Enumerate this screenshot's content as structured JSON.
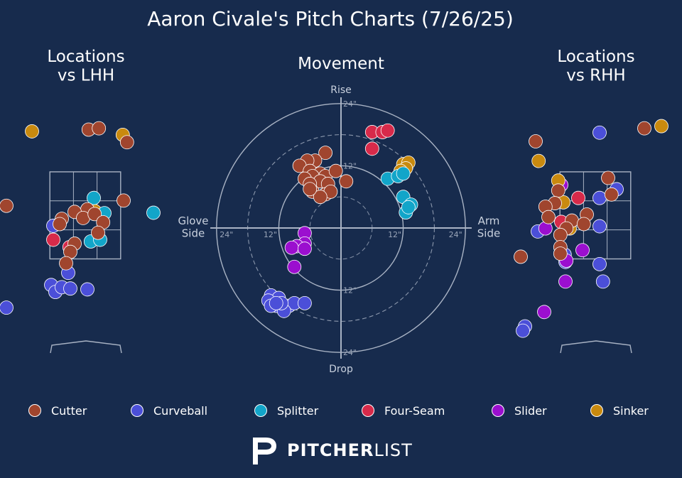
{
  "title": "Aaron Civale's Pitch Charts (7/26/25)",
  "colors": {
    "background": "#172b4d",
    "grid": "#a9b3c4",
    "point_edge": "#ffffff"
  },
  "brand": {
    "name_bold": "PITCHER",
    "name_light": "LIST",
    "icon": "pitcherlist-logo-icon"
  },
  "chart_data": [
    {
      "type": "scatter",
      "title": "Locations vs LHH",
      "subtitle": "",
      "notes": "Catcher's-view strike-zone location chart; values are plate_x / plate_z in feet",
      "xlim": [
        -2.0,
        2.0
      ],
      "ylim": [
        -1.2,
        5.0
      ],
      "zone": {
        "x": [
          -0.83,
          0.83
        ],
        "z": [
          1.5,
          3.5
        ]
      },
      "series": [
        {
          "name": "Cutter",
          "points": [
            [
              -1.85,
              2.72
            ],
            [
              0.08,
              4.47
            ],
            [
              0.32,
              4.5
            ],
            [
              0.98,
              4.18
            ],
            [
              0.9,
              2.84
            ],
            [
              0.05,
              2.64
            ],
            [
              -0.25,
              2.58
            ],
            [
              -0.05,
              2.44
            ],
            [
              0.22,
              2.53
            ],
            [
              0.42,
              2.34
            ],
            [
              0.3,
              2.1
            ],
            [
              -0.55,
              2.42
            ],
            [
              -0.6,
              2.3
            ],
            [
              -0.25,
              1.85
            ],
            [
              -0.35,
              1.66
            ],
            [
              -0.45,
              1.4
            ]
          ]
        },
        {
          "name": "Curveball",
          "points": [
            [
              -0.75,
              2.26
            ],
            [
              -0.4,
              1.18
            ],
            [
              -1.85,
              0.38
            ],
            [
              -0.8,
              0.9
            ],
            [
              -0.7,
              0.74
            ],
            [
              -0.55,
              0.85
            ],
            [
              -0.35,
              0.82
            ],
            [
              0.05,
              0.8
            ]
          ]
        },
        {
          "name": "Splitter",
          "points": [
            [
              0.2,
              2.9
            ],
            [
              0.45,
              2.55
            ],
            [
              1.6,
              2.56
            ],
            [
              0.13,
              1.9
            ],
            [
              0.35,
              1.94
            ]
          ]
        },
        {
          "name": "Four-Seam",
          "points": [
            [
              -0.75,
              1.94
            ],
            [
              -0.37,
              1.77
            ]
          ]
        },
        {
          "name": "Slider",
          "points": []
        },
        {
          "name": "Sinker",
          "points": [
            [
              -1.25,
              4.43
            ],
            [
              0.88,
              4.35
            ],
            [
              0.22,
              2.6
            ]
          ]
        }
      ]
    },
    {
      "type": "scatter",
      "title": "Movement",
      "notes": "Induced break in inches; x positive toward arm side, y positive is rise",
      "xlabel_left": "Glove\nSide",
      "xlabel_right": "Arm\nSide",
      "ylabel_top": "Rise",
      "ylabel_bottom": "Drop",
      "ring_labels": [
        "12\"",
        "24\""
      ],
      "xlim": [
        -24,
        24
      ],
      "ylim": [
        -24,
        24
      ],
      "series": [
        {
          "name": "Cutter",
          "points": [
            [
              -3,
              14.5
            ],
            [
              -5,
              13
            ],
            [
              -6.5,
              13
            ],
            [
              -8,
              12
            ],
            [
              -6,
              11
            ],
            [
              -4,
              10.5
            ],
            [
              -5.5,
              10
            ],
            [
              -7,
              9.5
            ],
            [
              -3,
              10
            ],
            [
              -4,
              9
            ],
            [
              -6,
              8.5
            ],
            [
              -2.5,
              8.5
            ],
            [
              -1,
              11
            ],
            [
              1,
              9
            ],
            [
              -5.5,
              7
            ],
            [
              -3,
              6.5
            ],
            [
              -2,
              7
            ],
            [
              -4,
              6
            ],
            [
              -6,
              7.5
            ]
          ]
        },
        {
          "name": "Curveball",
          "points": [
            [
              -13.5,
              -13
            ],
            [
              -12,
              -13.5
            ],
            [
              -14,
              -14
            ],
            [
              -12.5,
              -15
            ],
            [
              -11,
              -15.5
            ],
            [
              -10,
              -15
            ],
            [
              -9,
              -14.5
            ],
            [
              -7,
              -14.5
            ],
            [
              -13.5,
              -15
            ],
            [
              -11,
              -16
            ],
            [
              -11.5,
              -14.5
            ],
            [
              -12.5,
              -14.5
            ]
          ]
        },
        {
          "name": "Splitter",
          "points": [
            [
              9,
              9.5
            ],
            [
              11,
              10
            ],
            [
              12,
              10.5
            ],
            [
              12,
              6
            ],
            [
              13.5,
              4.5
            ],
            [
              12.5,
              3
            ],
            [
              13,
              4
            ]
          ]
        },
        {
          "name": "Four-Seam",
          "points": [
            [
              6,
              18.5
            ],
            [
              8,
              18.5
            ],
            [
              9,
              18.8
            ],
            [
              6,
              15.3
            ]
          ]
        },
        {
          "name": "Slider",
          "points": [
            [
              -7,
              -1
            ],
            [
              -7,
              -3
            ],
            [
              -8.5,
              -3.5
            ],
            [
              -9.5,
              -3.8
            ],
            [
              -7,
              -4
            ],
            [
              -9,
              -7.5
            ]
          ]
        },
        {
          "name": "Sinker",
          "points": [
            [
              12,
              12.3
            ],
            [
              13,
              12.6
            ],
            [
              12.5,
              11.5
            ],
            [
              11.5,
              11
            ]
          ]
        }
      ]
    },
    {
      "type": "scatter",
      "title": "Locations vs RHH",
      "subtitle": "",
      "notes": "Catcher's-view strike-zone location chart; values are plate_x / plate_z in feet",
      "xlim": [
        -2.0,
        2.0
      ],
      "ylim": [
        -1.2,
        5.0
      ],
      "zone": {
        "x": [
          -0.83,
          0.83
        ],
        "z": [
          1.5,
          3.5
        ]
      },
      "series": [
        {
          "name": "Cutter",
          "points": [
            [
              1.15,
              4.5
            ],
            [
              -1.4,
              4.2
            ],
            [
              0.3,
              3.36
            ],
            [
              -0.87,
              3.07
            ],
            [
              -0.95,
              2.78
            ],
            [
              -1.17,
              2.7
            ],
            [
              -0.2,
              2.52
            ],
            [
              0.38,
              2.98
            ],
            [
              -0.55,
              2.38
            ],
            [
              -0.68,
              2.2
            ],
            [
              -1.1,
              2.46
            ],
            [
              -0.27,
              2.3
            ],
            [
              -0.82,
              2.05
            ],
            [
              -0.82,
              1.77
            ],
            [
              -0.82,
              1.62
            ],
            [
              -1.75,
              1.55
            ]
          ]
        },
        {
          "name": "Curveball",
          "points": [
            [
              0.1,
              4.4
            ],
            [
              0.5,
              3.1
            ],
            [
              0.1,
              2.9
            ],
            [
              -1.35,
              2.13
            ],
            [
              0.1,
              2.25
            ],
            [
              -0.7,
              1.43
            ],
            [
              -0.72,
              1.6
            ],
            [
              0.1,
              1.38
            ],
            [
              0.18,
              0.98
            ],
            [
              -1.65,
              -0.05
            ],
            [
              -1.7,
              -0.15
            ]
          ]
        },
        {
          "name": "Splitter",
          "points": []
        },
        {
          "name": "Four-Seam",
          "points": [
            [
              -0.4,
              2.9
            ],
            [
              -0.8,
              2.35
            ]
          ]
        },
        {
          "name": "Slider",
          "points": [
            [
              -0.8,
              3.2
            ],
            [
              -1.17,
              2.2
            ],
            [
              -0.68,
              1.46
            ],
            [
              -0.7,
              0.98
            ],
            [
              -1.2,
              0.28
            ],
            [
              -0.3,
              1.7
            ]
          ]
        },
        {
          "name": "Sinker",
          "points": [
            [
              1.55,
              4.55
            ],
            [
              -1.33,
              3.75
            ],
            [
              -0.87,
              3.3
            ],
            [
              -0.75,
              2.8
            ],
            [
              -0.6,
              2.2
            ]
          ]
        }
      ]
    }
  ],
  "legend": [
    {
      "label": "Cutter",
      "color": "#a0452e"
    },
    {
      "label": "Curveball",
      "color": "#4b4fd8"
    },
    {
      "label": "Splitter",
      "color": "#12a5c9"
    },
    {
      "label": "Four-Seam",
      "color": "#d72a4a"
    },
    {
      "label": "Slider",
      "color": "#9b0fcf"
    },
    {
      "label": "Sinker",
      "color": "#c98a0f"
    }
  ]
}
